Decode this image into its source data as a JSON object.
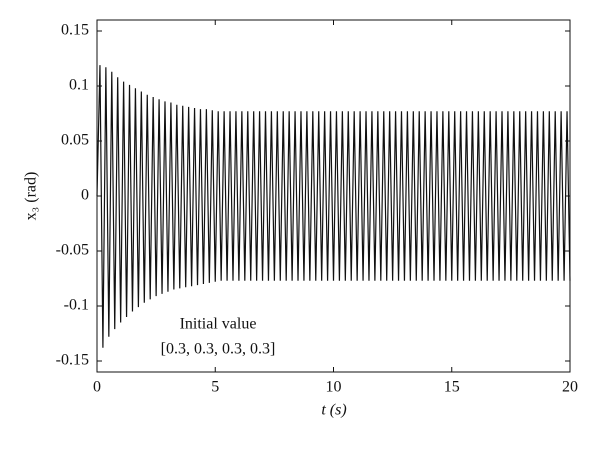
{
  "chart_data": {
    "type": "line",
    "xlabel": "t (s)",
    "ylabel": "x₃ (rad)",
    "annotations": [
      "Initial value",
      "[0.3, 0.3, 0.3, 0.3]"
    ],
    "xlim": [
      0,
      20
    ],
    "ylim": [
      -0.16,
      0.16
    ],
    "xticks": [
      0,
      5,
      10,
      15,
      20
    ],
    "yticks": [
      -0.15,
      -0.1,
      -0.05,
      0,
      0.05,
      0.1,
      0.15
    ],
    "grid": false,
    "x": [
      0,
      0.125,
      0.25,
      0.375,
      0.5,
      0.625,
      0.75,
      0.875,
      1,
      1.125,
      1.25,
      1.375,
      1.5,
      1.625,
      1.75,
      1.875,
      2,
      2.125,
      2.25,
      2.375,
      2.5,
      2.625,
      2.75,
      2.875,
      3,
      3.125,
      3.25,
      3.375,
      3.5,
      3.625,
      3.75,
      3.875,
      4,
      4.125,
      4.25,
      4.375,
      4.5,
      4.625,
      4.75,
      4.875,
      5,
      5.125,
      5.25,
      5.375,
      5.5,
      5.625,
      5.75,
      5.875,
      6,
      6.125,
      6.25,
      6.375,
      6.5,
      6.625,
      6.75,
      6.875,
      7,
      7.125,
      7.25,
      7.375,
      7.5,
      7.625,
      7.75,
      7.875,
      8,
      8.125,
      8.25,
      8.375,
      8.5,
      8.625,
      8.75,
      8.875,
      9,
      9.125,
      9.25,
      9.375,
      9.5,
      9.625,
      9.75,
      9.875,
      10,
      10.125,
      10.25,
      10.375,
      10.5,
      10.625,
      10.75,
      10.875,
      11,
      11.125,
      11.25,
      11.375,
      11.5,
      11.625,
      11.75,
      11.875,
      12,
      12.125,
      12.25,
      12.375,
      12.5,
      12.625,
      12.75,
      12.875,
      13,
      13.125,
      13.25,
      13.375,
      13.5,
      13.625,
      13.75,
      13.875,
      14,
      14.125,
      14.25,
      14.375,
      14.5,
      14.625,
      14.75,
      14.875,
      15,
      15.125,
      15.25,
      15.375,
      15.5,
      15.625,
      15.75,
      15.875,
      16,
      16.125,
      16.25,
      16.375,
      16.5,
      16.625,
      16.75,
      16.875,
      17,
      17.125,
      17.25,
      17.375,
      17.5,
      17.625,
      17.75,
      17.875,
      18,
      18.125,
      18.25,
      18.375,
      18.5,
      18.625,
      18.75,
      18.875,
      19,
      19.125,
      19.25,
      19.375,
      19.5,
      19.625,
      19.75,
      19.875,
      20
    ],
    "series": [
      {
        "color": "#111111",
        "values": [
          0,
          0.119,
          -0.138,
          0.117,
          -0.128,
          0.113,
          -0.121,
          0.108,
          -0.115,
          0.104,
          -0.11,
          0.101,
          -0.105,
          0.098,
          -0.101,
          0.095,
          -0.097,
          0.092,
          -0.094,
          0.09,
          -0.091,
          0.088,
          -0.089,
          0.086,
          -0.087,
          0.085,
          -0.085,
          0.083,
          -0.084,
          0.082,
          -0.083,
          0.081,
          -0.082,
          0.08,
          -0.081,
          0.079,
          -0.08,
          0.079,
          -0.079,
          0.078,
          -0.078,
          0.077,
          -0.077,
          0.077,
          -0.077,
          0.077,
          -0.077,
          0.077,
          -0.077,
          0.077,
          -0.077,
          0.077,
          -0.077,
          0.077,
          -0.077,
          0.077,
          -0.077,
          0.077,
          -0.077,
          0.077,
          -0.077,
          0.077,
          -0.077,
          0.077,
          -0.077,
          0.077,
          -0.077,
          0.077,
          -0.077,
          0.077,
          -0.077,
          0.077,
          -0.077,
          0.077,
          -0.077,
          0.077,
          -0.077,
          0.077,
          -0.077,
          0.077,
          -0.077,
          0.077,
          -0.077,
          0.077,
          -0.077,
          0.077,
          -0.077,
          0.077,
          -0.077,
          0.077,
          -0.077,
          0.077,
          -0.077,
          0.077,
          -0.077,
          0.077,
          -0.077,
          0.077,
          -0.077,
          0.077,
          -0.077,
          0.077,
          -0.077,
          0.077,
          -0.077,
          0.077,
          -0.077,
          0.077,
          -0.077,
          0.077,
          -0.077,
          0.077,
          -0.077,
          0.077,
          -0.077,
          0.077,
          -0.077,
          0.077,
          -0.077,
          0.077,
          -0.077,
          0.077,
          -0.077,
          0.077,
          -0.077,
          0.077,
          -0.077,
          0.077,
          -0.077,
          0.077,
          -0.077,
          0.077,
          -0.077,
          0.077,
          -0.077,
          0.077,
          -0.077,
          0.077,
          -0.077,
          0.077,
          -0.077,
          0.077,
          -0.077,
          0.077,
          -0.077,
          0.077,
          -0.077,
          0.077,
          -0.077,
          0.077,
          -0.077,
          0.077,
          -0.077,
          0.077,
          -0.077,
          0.077,
          -0.077,
          0.077,
          -0.077,
          0.077,
          -0.077
        ]
      }
    ]
  }
}
